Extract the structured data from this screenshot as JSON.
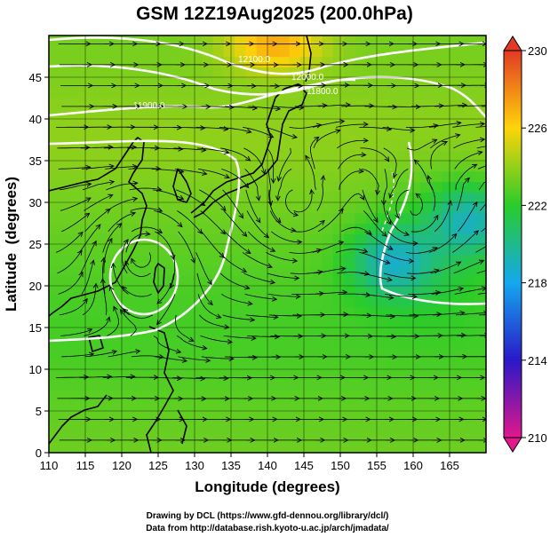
{
  "chart_data": {
    "type": "heatmap",
    "title": "GSM 12Z19Aug2025 (200.0hPa)",
    "xlabel": "Longitude (degrees)",
    "ylabel": "Latitude  (degrees)",
    "xlim": [
      110,
      170
    ],
    "ylim": [
      0,
      50
    ],
    "xticks": [
      110,
      115,
      120,
      125,
      130,
      135,
      140,
      145,
      150,
      155,
      160,
      165
    ],
    "yticks": [
      0,
      5,
      10,
      15,
      20,
      25,
      30,
      35,
      40,
      45
    ],
    "grid": true,
    "field": "temperature",
    "colorbar": {
      "range": [
        210,
        230
      ],
      "ticks": [
        210,
        214,
        218,
        222,
        226,
        230
      ],
      "colors": [
        "#e2188c",
        "#2a18c8",
        "#14a8ee",
        "#2acc2a",
        "#ffd40a",
        "#e23a24"
      ]
    },
    "contour_labels": [
      "12100.0",
      "12000.0",
      "11900.0",
      "11800.0"
    ],
    "features": [
      {
        "kind": "warm_max",
        "lon": 141,
        "lat": 49,
        "value": 228
      },
      {
        "kind": "cold_min",
        "lon": 168,
        "lat": 28,
        "value": 219
      },
      {
        "kind": "cold_min",
        "lon": 157,
        "lat": 23,
        "value": 219
      },
      {
        "kind": "anticyclone",
        "lon": 123,
        "lat": 24
      },
      {
        "kind": "cyclone",
        "lon": 144,
        "lat": 30
      },
      {
        "kind": "cyclone",
        "lon": 160,
        "lat": 29
      }
    ]
  },
  "footer": {
    "line1": "Drawing by DCL (https://www.gfd-dennou.org/library/dcl/)",
    "line2": "Data from http://database.rish.kyoto-u.ac.jp/arch/jmadata/"
  }
}
